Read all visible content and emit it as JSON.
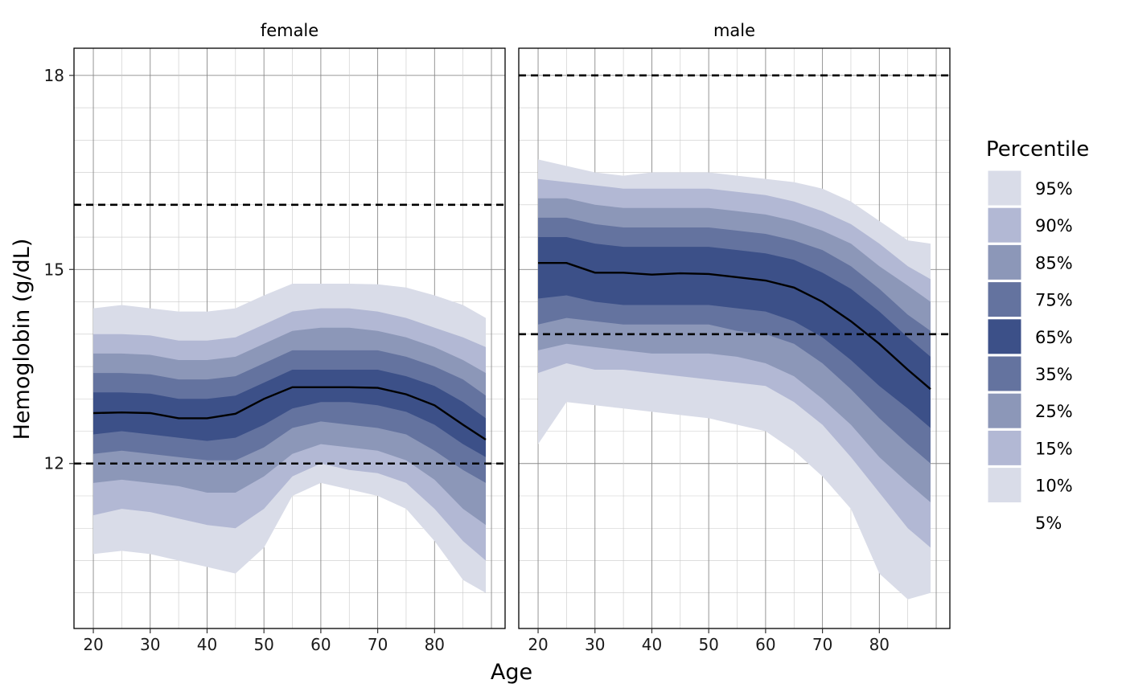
{
  "chart_data": {
    "type": "area",
    "xlabel": "Age",
    "ylabel": "Hemoglobin (g/dL)",
    "x_ticks": [
      20,
      30,
      40,
      50,
      60,
      70,
      80
    ],
    "y_ticks": [
      12,
      15,
      18
    ],
    "xlim": [
      16.6,
      92.4
    ],
    "ylim": [
      9.45,
      18.42
    ],
    "grid": true,
    "legend": {
      "title": "Percentile",
      "position": "right",
      "labels": [
        "95%",
        "90%",
        "85%",
        "75%",
        "65%",
        "35%",
        "25%",
        "15%",
        "10%",
        "5%"
      ],
      "colors": [
        "#d9dce8",
        "#b2b8d4",
        "#8c97b8",
        "#64739f",
        "#3c5088",
        "#64739f",
        "#8c97b8",
        "#b2b8d4",
        "#d9dce8"
      ]
    },
    "band_colors": {
      "p5_p95": "#d9dce8",
      "p10_p90": "#b2b8d4",
      "p15_p85": "#8c97b8",
      "p25_p75": "#64739f",
      "p35_p65": "#3c5088",
      "median": "#000000"
    },
    "panels": [
      {
        "name": "female",
        "x": [
          20,
          25,
          30,
          35,
          40,
          45,
          50,
          55,
          60,
          65,
          70,
          75,
          80,
          85,
          89
        ],
        "reference_lines": [
          12,
          16
        ],
        "series": [
          {
            "name": "5%",
            "values": [
              10.6,
              10.65,
              10.6,
              10.5,
              10.4,
              10.3,
              10.7,
              11.5,
              11.7,
              11.6,
              11.5,
              11.3,
              10.8,
              10.2,
              10.0
            ]
          },
          {
            "name": "10%",
            "values": [
              11.2,
              11.3,
              11.25,
              11.15,
              11.05,
              11.0,
              11.3,
              11.8,
              12.0,
              11.9,
              11.85,
              11.7,
              11.3,
              10.8,
              10.5
            ]
          },
          {
            "name": "15%",
            "values": [
              11.7,
              11.75,
              11.7,
              11.65,
              11.55,
              11.55,
              11.8,
              12.15,
              12.3,
              12.25,
              12.2,
              12.05,
              11.75,
              11.3,
              11.05
            ]
          },
          {
            "name": "25%",
            "values": [
              12.15,
              12.2,
              12.15,
              12.1,
              12.05,
              12.05,
              12.25,
              12.55,
              12.65,
              12.6,
              12.55,
              12.45,
              12.2,
              11.9,
              11.7
            ]
          },
          {
            "name": "35%",
            "values": [
              12.45,
              12.5,
              12.45,
              12.4,
              12.35,
              12.4,
              12.6,
              12.85,
              12.95,
              12.95,
              12.9,
              12.8,
              12.6,
              12.3,
              12.1
            ]
          },
          {
            "name": "50%",
            "values": [
              12.78,
              12.79,
              12.78,
              12.7,
              12.7,
              12.77,
              13.0,
              13.18,
              13.18,
              13.18,
              13.17,
              13.07,
              12.9,
              12.6,
              12.37
            ]
          },
          {
            "name": "65%",
            "values": [
              13.1,
              13.1,
              13.08,
              13.0,
              13.0,
              13.05,
              13.25,
              13.45,
              13.45,
              13.45,
              13.45,
              13.35,
              13.2,
              12.95,
              12.7
            ]
          },
          {
            "name": "75%",
            "values": [
              13.4,
              13.4,
              13.38,
              13.3,
              13.3,
              13.35,
              13.55,
              13.75,
              13.75,
              13.75,
              13.75,
              13.65,
              13.5,
              13.3,
              13.05
            ]
          },
          {
            "name": "85%",
            "values": [
              13.7,
              13.7,
              13.68,
              13.6,
              13.6,
              13.65,
              13.85,
              14.05,
              14.1,
              14.1,
              14.05,
              13.95,
              13.8,
              13.6,
              13.4
            ]
          },
          {
            "name": "90%",
            "values": [
              14.0,
              14.0,
              13.98,
              13.9,
              13.9,
              13.95,
              14.15,
              14.35,
              14.4,
              14.4,
              14.35,
              14.25,
              14.1,
              13.95,
              13.8
            ]
          },
          {
            "name": "95%",
            "values": [
              14.4,
              14.45,
              14.4,
              14.35,
              14.35,
              14.4,
              14.6,
              14.78,
              14.78,
              14.78,
              14.77,
              14.72,
              14.6,
              14.45,
              14.25
            ]
          }
        ]
      },
      {
        "name": "male",
        "x": [
          20,
          25,
          30,
          35,
          40,
          45,
          50,
          55,
          60,
          65,
          70,
          75,
          80,
          85,
          89
        ],
        "reference_lines": [
          14,
          18
        ],
        "series": [
          {
            "name": "5%",
            "values": [
              12.3,
              12.95,
              12.9,
              12.85,
              12.8,
              12.75,
              12.7,
              12.6,
              12.5,
              12.2,
              11.8,
              11.3,
              10.3,
              9.9,
              10.0
            ]
          },
          {
            "name": "10%",
            "values": [
              13.4,
              13.55,
              13.45,
              13.45,
              13.4,
              13.35,
              13.3,
              13.25,
              13.2,
              12.95,
              12.6,
              12.1,
              11.55,
              11.0,
              10.7
            ]
          },
          {
            "name": "15%",
            "values": [
              13.75,
              13.85,
              13.8,
              13.75,
              13.7,
              13.7,
              13.7,
              13.65,
              13.55,
              13.35,
              13.0,
              12.6,
              12.1,
              11.7,
              11.4
            ]
          },
          {
            "name": "25%",
            "values": [
              14.15,
              14.25,
              14.2,
              14.15,
              14.15,
              14.15,
              14.15,
              14.05,
              14.0,
              13.85,
              13.55,
              13.15,
              12.7,
              12.3,
              12.0
            ]
          },
          {
            "name": "35%",
            "values": [
              14.55,
              14.6,
              14.5,
              14.45,
              14.45,
              14.45,
              14.45,
              14.4,
              14.35,
              14.2,
              13.95,
              13.6,
              13.2,
              12.85,
              12.55
            ]
          },
          {
            "name": "50%",
            "values": [
              15.1,
              15.1,
              14.95,
              14.95,
              14.92,
              14.94,
              14.93,
              14.88,
              14.83,
              14.72,
              14.5,
              14.2,
              13.85,
              13.45,
              13.15
            ]
          },
          {
            "name": "65%",
            "values": [
              15.5,
              15.5,
              15.4,
              15.35,
              15.35,
              15.35,
              15.35,
              15.3,
              15.25,
              15.15,
              14.95,
              14.7,
              14.35,
              13.95,
              13.65
            ]
          },
          {
            "name": "75%",
            "values": [
              15.8,
              15.8,
              15.7,
              15.65,
              15.65,
              15.65,
              15.65,
              15.6,
              15.55,
              15.45,
              15.3,
              15.05,
              14.7,
              14.3,
              14.05
            ]
          },
          {
            "name": "85%",
            "values": [
              16.1,
              16.1,
              16.0,
              15.95,
              15.95,
              15.95,
              15.95,
              15.9,
              15.85,
              15.75,
              15.6,
              15.4,
              15.05,
              14.75,
              14.5
            ]
          },
          {
            "name": "90%",
            "values": [
              16.4,
              16.35,
              16.3,
              16.25,
              16.25,
              16.25,
              16.25,
              16.2,
              16.15,
              16.05,
              15.9,
              15.7,
              15.4,
              15.05,
              14.85
            ]
          },
          {
            "name": "95%",
            "values": [
              16.7,
              16.6,
              16.5,
              16.45,
              16.5,
              16.5,
              16.5,
              16.45,
              16.4,
              16.35,
              16.25,
              16.05,
              15.75,
              15.45,
              15.4
            ]
          }
        ]
      }
    ]
  }
}
